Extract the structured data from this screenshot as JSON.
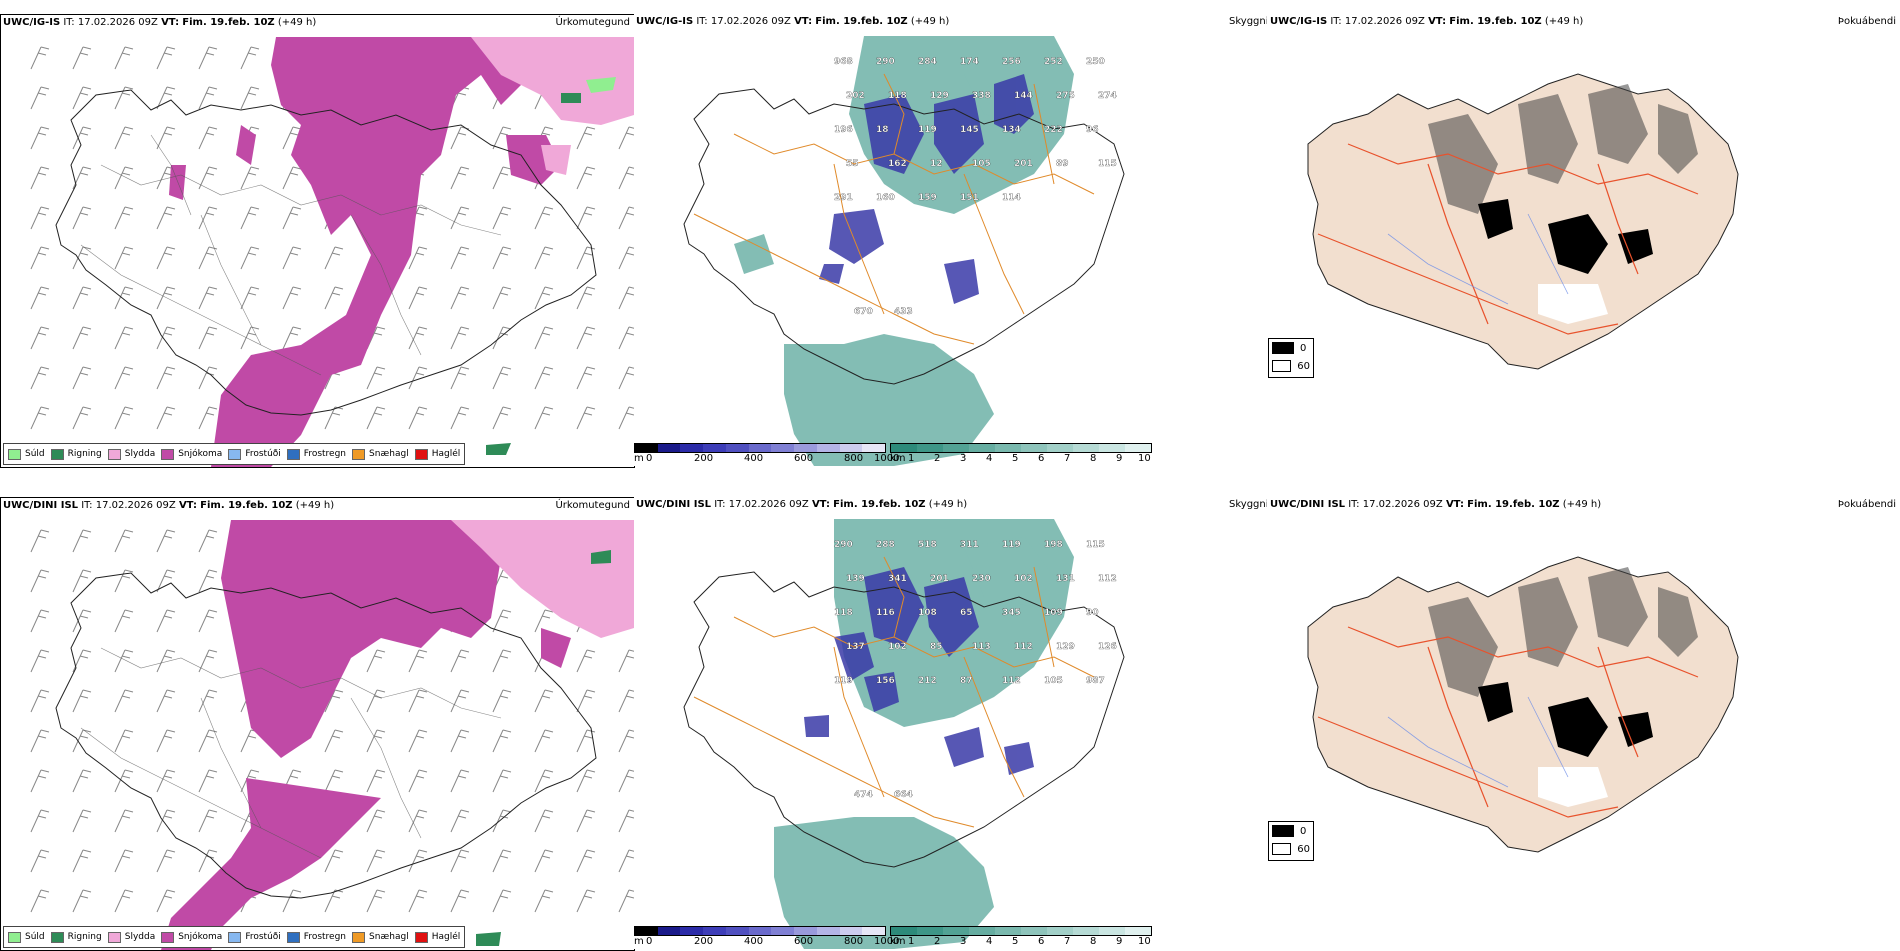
{
  "rows": [
    {
      "model": "UWC/IG-IS",
      "it_label": "IT:",
      "it_value": "17.02.2026 09Z",
      "vt_label": "VT:",
      "vt_value": "Fim. 19.feb. 10Z",
      "lead": "(+49 h)",
      "precip_title": "Úrkomutegund",
      "vis_title": "Skyggni",
      "fog_title": "Þokuábendi",
      "vis_values": [
        "968",
        "290",
        "284",
        "174",
        "256",
        "252",
        "250",
        "202",
        "118",
        "129",
        "338",
        "144",
        "275",
        "274",
        "196",
        "18",
        "119",
        "145",
        "134",
        "222",
        "96",
        "55",
        "162",
        "12",
        "105",
        "201",
        "89",
        "115",
        "291",
        "160",
        "159",
        "151",
        "114",
        "670",
        "433"
      ]
    },
    {
      "model": "UWC/DINI ISL",
      "it_label": "IT:",
      "it_value": "17.02.2026 09Z",
      "vt_label": "VT:",
      "vt_value": "Fim. 19.feb. 10Z",
      "lead": "(+49 h)",
      "precip_title": "Úrkomutegund",
      "vis_title": "Skyggni",
      "fog_title": "Þokuábendi",
      "vis_values": [
        "290",
        "288",
        "518",
        "311",
        "119",
        "198",
        "115",
        "139",
        "341",
        "201",
        "230",
        "102",
        "131",
        "112",
        "118",
        "116",
        "108",
        "65",
        "345",
        "109",
        "90",
        "137",
        "102",
        "85",
        "113",
        "112",
        "129",
        "126",
        "119",
        "156",
        "212",
        "87",
        "112",
        "105",
        "987",
        "474",
        "664"
      ]
    }
  ],
  "precip_legend": [
    {
      "label": "Súld",
      "color": "#90ee90"
    },
    {
      "label": "Rigning",
      "color": "#2e8b57"
    },
    {
      "label": "Slydda",
      "color": "#f0a8d8"
    },
    {
      "label": "Snjókoma",
      "color": "#c04aa6"
    },
    {
      "label": "Frostúði",
      "color": "#87b8f0"
    },
    {
      "label": "Frostregn",
      "color": "#2f6fbf"
    },
    {
      "label": "Snæhagl",
      "color": "#ef9a26"
    },
    {
      "label": "Haglél",
      "color": "#e01010"
    }
  ],
  "vis_colorbar": {
    "unit": "m",
    "ticks": [
      "0",
      "200",
      "400",
      "600",
      "800",
      "1000"
    ],
    "colors": [
      "#000000",
      "#1a1a8a",
      "#2b2ba8",
      "#3d3db8",
      "#5050c0",
      "#6a6acc",
      "#8080d4",
      "#9a9adc",
      "#b4b4e6",
      "#ccccee",
      "#e6e6f6"
    ]
  },
  "km_colorbar": {
    "unit": "km",
    "ticks": [
      "1",
      "2",
      "3",
      "4",
      "5",
      "6",
      "7",
      "8",
      "9",
      "10"
    ],
    "colors": [
      "#2d8a7a",
      "#3e9687",
      "#52a294",
      "#66ada1",
      "#7ab9ae",
      "#8ec4bb",
      "#a2d0c8",
      "#b6dbd5",
      "#caE6e2",
      "#e0f1ef"
    ]
  },
  "fog_legend": [
    {
      "label": "0",
      "color": "#000000"
    },
    {
      "label": "60",
      "color": "#ffffff"
    }
  ],
  "colors": {
    "snow": "#c04aa6",
    "sleet": "#f0a8d8",
    "rain": "#2e8b57",
    "drizzle": "#90ee90",
    "teal": "#5aa79b",
    "roads": "#e08a2a",
    "fog_land": "#f2dfcf",
    "fog_roads": "#e8522c",
    "rivers": "#6f8fe8"
  }
}
